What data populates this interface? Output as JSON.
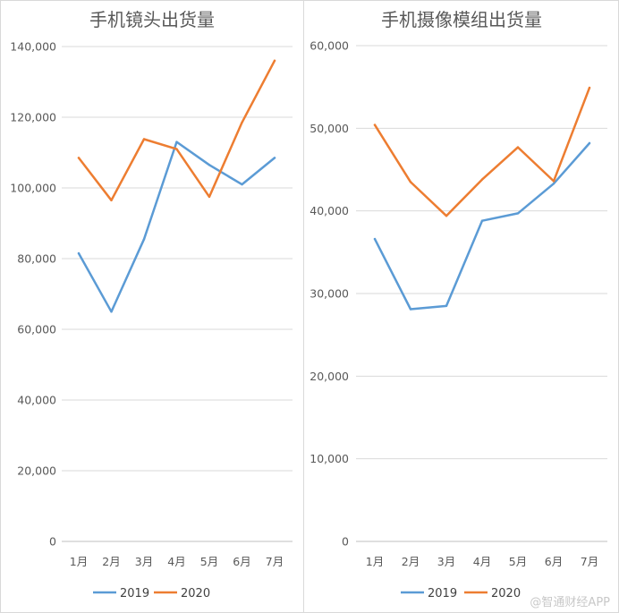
{
  "colors": {
    "s2019": "#5b9bd5",
    "s2020": "#ed7d31",
    "grid": "#d9d9d9",
    "text": "#595959"
  },
  "watermark": "@智通财经APP",
  "chart_data": [
    {
      "type": "line",
      "title": "手机镜头出货量",
      "categories": [
        "1月",
        "2月",
        "3月",
        "4月",
        "5月",
        "6月",
        "7月"
      ],
      "ylim": [
        0,
        140000
      ],
      "yticks": [
        0,
        20000,
        40000,
        60000,
        80000,
        100000,
        120000,
        140000
      ],
      "ytick_labels": [
        "0",
        "20,000",
        "40,000",
        "60,000",
        "80,000",
        "100,000",
        "120,000",
        "140,000"
      ],
      "grid": true,
      "legend": "bottom",
      "series": [
        {
          "name": "2019",
          "color_key": "s2019",
          "values": [
            81500,
            65000,
            85500,
            113000,
            106500,
            101000,
            108500
          ]
        },
        {
          "name": "2020",
          "color_key": "s2020",
          "values": [
            108500,
            96500,
            113800,
            111000,
            97500,
            118500,
            136000
          ]
        }
      ]
    },
    {
      "type": "line",
      "title": "手机摄像模组出货量",
      "categories": [
        "1月",
        "2月",
        "3月",
        "4月",
        "5月",
        "6月",
        "7月"
      ],
      "ylim": [
        0,
        60000
      ],
      "yticks": [
        0,
        10000,
        20000,
        30000,
        40000,
        50000,
        60000
      ],
      "ytick_labels": [
        "0",
        "10,000",
        "20,000",
        "30,000",
        "40,000",
        "50,000",
        "60,000"
      ],
      "grid": true,
      "legend": "bottom",
      "series": [
        {
          "name": "2019",
          "color_key": "s2019",
          "values": [
            36600,
            28100,
            28500,
            38800,
            39700,
            43300,
            48200
          ]
        },
        {
          "name": "2020",
          "color_key": "s2020",
          "values": [
            50400,
            43500,
            39400,
            43800,
            47700,
            43600,
            54900
          ]
        }
      ]
    }
  ]
}
